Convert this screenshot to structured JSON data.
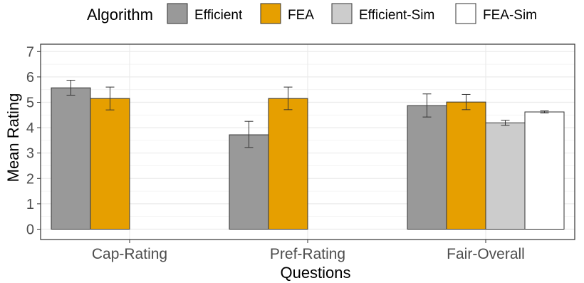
{
  "chart_data": {
    "type": "bar",
    "title": "",
    "xlabel": "Questions",
    "ylabel": "Mean Rating",
    "ylim": [
      0,
      7.35
    ],
    "yticks": [
      0,
      1,
      2,
      3,
      4,
      5,
      6,
      7
    ],
    "grid": true,
    "legend": {
      "title": "Algorithm",
      "position": "top"
    },
    "categories": [
      "Cap-Rating",
      "Pref-Rating",
      "Fair-Overall"
    ],
    "series": [
      {
        "name": "Efficient",
        "color": "#999999",
        "values": [
          5.57,
          3.72,
          4.87
        ],
        "err_low": [
          5.28,
          3.22,
          4.42
        ],
        "err_high": [
          5.87,
          4.25,
          5.33
        ]
      },
      {
        "name": "FEA",
        "color": "#E69F00",
        "values": [
          5.15,
          5.15,
          5.01
        ],
        "err_low": [
          4.7,
          4.71,
          4.71
        ],
        "err_high": [
          5.6,
          5.6,
          5.31
        ]
      },
      {
        "name": "Efficient-Sim",
        "color": "#cccccc",
        "values": [
          0,
          0,
          4.19
        ],
        "err_low": [
          null,
          null,
          4.09
        ],
        "err_high": [
          null,
          null,
          4.29
        ]
      },
      {
        "name": "FEA-Sim",
        "color": "#ffffff",
        "values": [
          0,
          0,
          4.62
        ],
        "err_low": [
          null,
          null,
          4.58
        ],
        "err_high": [
          null,
          null,
          4.66
        ]
      }
    ]
  }
}
